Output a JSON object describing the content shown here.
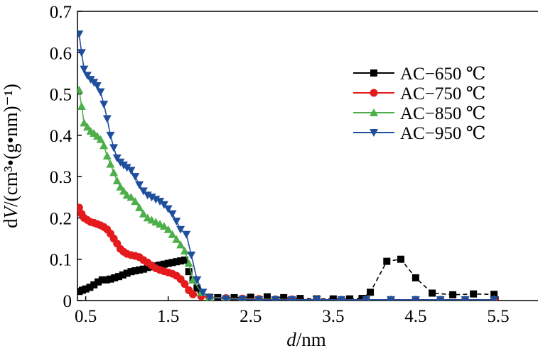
{
  "chart_data": {
    "type": "line",
    "xlabel_italic": "d",
    "xlabel_unit": "/nm",
    "ylabel_italic": "V",
    "ylabel_prefix": "d",
    "ylabel_unit": "/(cm³•(g•nm)⁻¹)",
    "xlim": [
      0.4,
      6.0
    ],
    "ylim": [
      0,
      0.7
    ],
    "xticks": [
      0.5,
      1.5,
      2.5,
      3.5,
      4.5,
      5.5
    ],
    "xtick_labels": [
      "0.5",
      "1.5",
      "2.5",
      "3.5",
      "4.5",
      "5.5"
    ],
    "yticks": [
      0,
      0.1,
      0.2,
      0.3,
      0.4,
      0.5,
      0.6,
      0.7
    ],
    "ytick_labels": [
      "0",
      "0.1",
      "0.2",
      "0.3",
      "0.4",
      "0.5",
      "0.6",
      "0.7"
    ],
    "grid": false,
    "legend_position": "top-right",
    "series": [
      {
        "name": "AC−650 ℃",
        "color": "#000000",
        "marker": "square",
        "line_style": "dashed",
        "points": [
          [
            0.42,
            0.022
          ],
          [
            0.46,
            0.025
          ],
          [
            0.5,
            0.028
          ],
          [
            0.55,
            0.032
          ],
          [
            0.6,
            0.038
          ],
          [
            0.65,
            0.045
          ],
          [
            0.7,
            0.05
          ],
          [
            0.75,
            0.05
          ],
          [
            0.8,
            0.052
          ],
          [
            0.85,
            0.055
          ],
          [
            0.9,
            0.058
          ],
          [
            0.95,
            0.062
          ],
          [
            1.0,
            0.066
          ],
          [
            1.05,
            0.07
          ],
          [
            1.1,
            0.072
          ],
          [
            1.15,
            0.074
          ],
          [
            1.2,
            0.076
          ],
          [
            1.25,
            0.08
          ],
          [
            1.3,
            0.082
          ],
          [
            1.35,
            0.084
          ],
          [
            1.4,
            0.086
          ],
          [
            1.45,
            0.088
          ],
          [
            1.5,
            0.09
          ],
          [
            1.55,
            0.092
          ],
          [
            1.6,
            0.094
          ],
          [
            1.65,
            0.096
          ],
          [
            1.7,
            0.098
          ],
          [
            1.75,
            0.07
          ],
          [
            1.8,
            0.05
          ],
          [
            1.85,
            0.03
          ],
          [
            1.9,
            0.015
          ],
          [
            2.0,
            0.008
          ],
          [
            2.1,
            0.007
          ],
          [
            2.3,
            0.007
          ],
          [
            2.5,
            0.008
          ],
          [
            2.7,
            0.009
          ],
          [
            2.9,
            0.007
          ],
          [
            3.1,
            0.005
          ],
          [
            3.3,
            0.004
          ],
          [
            3.5,
            0.004
          ],
          [
            3.7,
            0.004
          ],
          [
            3.85,
            0.005
          ],
          [
            3.95,
            0.02
          ],
          [
            4.15,
            0.095
          ],
          [
            4.32,
            0.1
          ],
          [
            4.5,
            0.055
          ],
          [
            4.7,
            0.018
          ],
          [
            4.95,
            0.014
          ],
          [
            5.2,
            0.016
          ],
          [
            5.45,
            0.015
          ]
        ]
      },
      {
        "name": "AC−750 ℃",
        "color": "#e41a1c",
        "marker": "circle",
        "line_style": "solid",
        "points": [
          [
            0.42,
            0.225
          ],
          [
            0.45,
            0.21
          ],
          [
            0.48,
            0.2
          ],
          [
            0.52,
            0.195
          ],
          [
            0.56,
            0.19
          ],
          [
            0.6,
            0.188
          ],
          [
            0.64,
            0.185
          ],
          [
            0.68,
            0.182
          ],
          [
            0.72,
            0.178
          ],
          [
            0.76,
            0.172
          ],
          [
            0.8,
            0.162
          ],
          [
            0.84,
            0.15
          ],
          [
            0.88,
            0.138
          ],
          [
            0.92,
            0.125
          ],
          [
            0.96,
            0.118
          ],
          [
            1.0,
            0.113
          ],
          [
            1.05,
            0.11
          ],
          [
            1.1,
            0.108
          ],
          [
            1.15,
            0.105
          ],
          [
            1.2,
            0.098
          ],
          [
            1.25,
            0.092
          ],
          [
            1.3,
            0.085
          ],
          [
            1.35,
            0.078
          ],
          [
            1.4,
            0.074
          ],
          [
            1.45,
            0.071
          ],
          [
            1.5,
            0.068
          ],
          [
            1.55,
            0.065
          ],
          [
            1.6,
            0.06
          ],
          [
            1.65,
            0.052
          ],
          [
            1.7,
            0.04
          ],
          [
            1.75,
            0.025
          ],
          [
            1.8,
            0.015
          ],
          [
            1.9,
            0.01
          ],
          [
            2.0,
            0.008
          ],
          [
            2.2,
            0.006
          ],
          [
            2.4,
            0.005
          ],
          [
            2.6,
            0.004
          ],
          [
            2.8,
            0.003
          ],
          [
            3.0,
            0.003
          ],
          [
            3.3,
            0.002
          ],
          [
            3.6,
            0.002
          ],
          [
            3.9,
            0.002
          ],
          [
            4.2,
            0.002
          ],
          [
            4.5,
            0.002
          ],
          [
            4.8,
            0.002
          ],
          [
            5.1,
            0.002
          ],
          [
            5.45,
            0.002
          ]
        ]
      },
      {
        "name": "AC−850 ℃",
        "color": "#4daf4a",
        "marker": "triangle-up",
        "line_style": "solid",
        "points": [
          [
            0.42,
            0.51
          ],
          [
            0.45,
            0.47
          ],
          [
            0.48,
            0.43
          ],
          [
            0.52,
            0.42
          ],
          [
            0.56,
            0.41
          ],
          [
            0.6,
            0.405
          ],
          [
            0.64,
            0.398
          ],
          [
            0.68,
            0.39
          ],
          [
            0.72,
            0.375
          ],
          [
            0.76,
            0.35
          ],
          [
            0.8,
            0.33
          ],
          [
            0.84,
            0.31
          ],
          [
            0.88,
            0.29
          ],
          [
            0.92,
            0.275
          ],
          [
            0.96,
            0.265
          ],
          [
            1.0,
            0.255
          ],
          [
            1.05,
            0.25
          ],
          [
            1.1,
            0.24
          ],
          [
            1.15,
            0.225
          ],
          [
            1.2,
            0.21
          ],
          [
            1.25,
            0.2
          ],
          [
            1.3,
            0.195
          ],
          [
            1.35,
            0.19
          ],
          [
            1.4,
            0.185
          ],
          [
            1.45,
            0.18
          ],
          [
            1.5,
            0.172
          ],
          [
            1.55,
            0.16
          ],
          [
            1.6,
            0.148
          ],
          [
            1.65,
            0.135
          ],
          [
            1.7,
            0.12
          ],
          [
            1.75,
            0.09
          ],
          [
            1.8,
            0.05
          ],
          [
            1.9,
            0.02
          ],
          [
            2.0,
            0.008
          ],
          [
            2.2,
            0.005
          ],
          [
            2.4,
            0.004
          ],
          [
            2.6,
            0.003
          ],
          [
            2.8,
            0.003
          ],
          [
            3.0,
            0.002
          ],
          [
            3.3,
            0.002
          ],
          [
            3.6,
            0.002
          ],
          [
            3.9,
            0.002
          ],
          [
            4.2,
            0.002
          ],
          [
            4.5,
            0.002
          ],
          [
            4.8,
            0.002
          ],
          [
            5.1,
            0.002
          ],
          [
            5.45,
            0.002
          ]
        ]
      },
      {
        "name": "AC−950 ℃",
        "color": "#1f4e9c",
        "marker": "triangle-down",
        "line_style": "solid",
        "points": [
          [
            0.42,
            0.645
          ],
          [
            0.45,
            0.6
          ],
          [
            0.48,
            0.56
          ],
          [
            0.52,
            0.545
          ],
          [
            0.56,
            0.535
          ],
          [
            0.6,
            0.528
          ],
          [
            0.64,
            0.52
          ],
          [
            0.68,
            0.505
          ],
          [
            0.72,
            0.475
          ],
          [
            0.76,
            0.44
          ],
          [
            0.8,
            0.4
          ],
          [
            0.84,
            0.37
          ],
          [
            0.88,
            0.345
          ],
          [
            0.92,
            0.335
          ],
          [
            0.96,
            0.328
          ],
          [
            1.0,
            0.322
          ],
          [
            1.05,
            0.315
          ],
          [
            1.1,
            0.3
          ],
          [
            1.15,
            0.28
          ],
          [
            1.2,
            0.265
          ],
          [
            1.25,
            0.255
          ],
          [
            1.3,
            0.25
          ],
          [
            1.35,
            0.245
          ],
          [
            1.4,
            0.24
          ],
          [
            1.45,
            0.232
          ],
          [
            1.5,
            0.222
          ],
          [
            1.55,
            0.21
          ],
          [
            1.6,
            0.192
          ],
          [
            1.65,
            0.172
          ],
          [
            1.72,
            0.16
          ],
          [
            1.78,
            0.11
          ],
          [
            1.85,
            0.05
          ],
          [
            1.92,
            0.02
          ],
          [
            2.0,
            0.007
          ],
          [
            2.2,
            0.004
          ],
          [
            2.4,
            0.003
          ],
          [
            2.6,
            0.002
          ],
          [
            2.8,
            0.002
          ],
          [
            3.0,
            0.002
          ],
          [
            3.3,
            0.002
          ],
          [
            3.6,
            0.002
          ],
          [
            3.9,
            0.002
          ],
          [
            4.2,
            0.002
          ],
          [
            4.5,
            0.002
          ],
          [
            4.8,
            0.002
          ],
          [
            5.1,
            0.002
          ],
          [
            5.45,
            0.002
          ]
        ]
      }
    ]
  }
}
